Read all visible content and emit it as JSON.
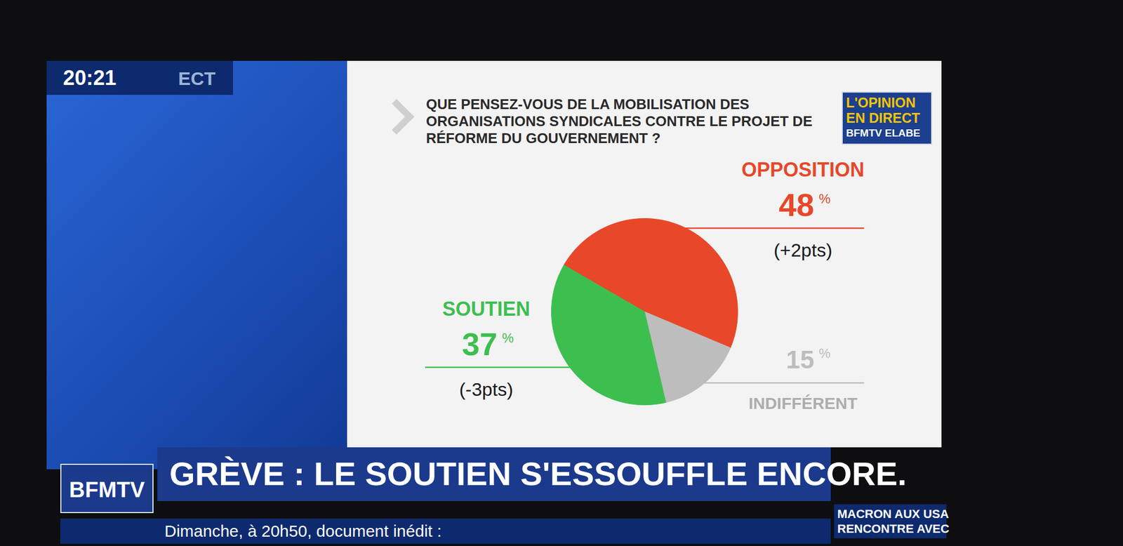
{
  "chart_data": {
    "type": "pie",
    "title": "QUE PENSEZ-VOUS DE LA MOBILISATION DES ORGANISATIONS SYNDICALES CONTRE LE PROJET DE RÉFORME DU GOUVERNEMENT ?",
    "categories": [
      "OPPOSITION",
      "INDIFFÉRENT",
      "SOUTIEN"
    ],
    "values": [
      48,
      15,
      37
    ],
    "value_labels": [
      "48%",
      "15%",
      "37%"
    ],
    "changes": [
      2,
      null,
      -3
    ],
    "change_labels": [
      "(+2pts)",
      null,
      "(-3pts)"
    ],
    "colors": [
      "#e8472a",
      "#bdbdbd",
      "#3dbf4f"
    ],
    "data_labels": true,
    "tick_labels": false
  },
  "badge": [
    "L'OPINION",
    "EN DIRECT",
    "BFMTV ELABE"
  ],
  "headline": "GRÈVE : LE SOUTIEN S'ESSOUFFLE ENCORE.",
  "clock": "20:21",
  "clock_tag": "ECT",
  "logo": "BFMTV",
  "ticker": "Dimanche, à 20h50, document inédit :",
  "side_caption": [
    "MACRON AUX USA",
    "RENCONTRE AVEC"
  ]
}
